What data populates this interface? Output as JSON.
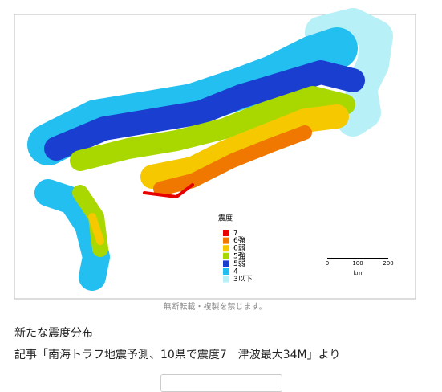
{
  "legend": {
    "title": "震度",
    "items": [
      {
        "label": "7",
        "color": "#e60000"
      },
      {
        "label": "6強",
        "color": "#f07800"
      },
      {
        "label": "6弱",
        "color": "#f5c800"
      },
      {
        "label": "5強",
        "color": "#a8d800"
      },
      {
        "label": "5弱",
        "color": "#1a3fd0"
      },
      {
        "label": "4",
        "color": "#22bff0"
      },
      {
        "label": "3以下",
        "color": "#b8f0f8"
      }
    ]
  },
  "scale": {
    "ticks": [
      "0",
      "100",
      "200"
    ],
    "unit": "km"
  },
  "caption": "無断転載・複製を禁じます。",
  "article": {
    "heading": "新たな震度分布",
    "source": "記事「南海トラフ地震予測、10県で震度7　津波最大34M」より"
  }
}
